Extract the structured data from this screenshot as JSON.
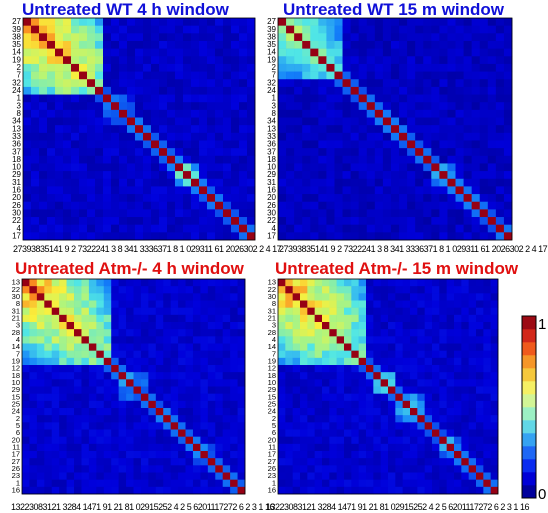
{
  "chart_data": [
    {
      "type": "heatmap",
      "title": "Untreated WT 4 h window",
      "title_color": "#1010d8",
      "labels": [
        "27",
        "39",
        "38",
        "35",
        "14",
        "19",
        "2",
        "7",
        "32",
        "24",
        "1",
        "3",
        "8",
        "34",
        "13",
        "33",
        "36",
        "37",
        "18",
        "10",
        "29",
        "31",
        "16",
        "20",
        "26",
        "30",
        "22",
        "4",
        "17"
      ],
      "x_tick_text": "27393835141 9 2 7322241  3  8 341 3336371 8 1 029311 61 2026302 2 4 17",
      "clusters": [
        {
          "from": 0,
          "to": 9,
          "peak": 0.9
        },
        {
          "from": 10,
          "to": 13,
          "peak": 0.4
        },
        {
          "from": 19,
          "to": 21,
          "peak": 0.65
        }
      ],
      "diagonal": 1.0,
      "background": 0.05
    },
    {
      "type": "heatmap",
      "title": "Untreated WT 15 m window",
      "title_color": "#1010d8",
      "labels": [
        "27",
        "39",
        "38",
        "35",
        "14",
        "19",
        "2",
        "7",
        "32",
        "24",
        "1",
        "3",
        "8",
        "34",
        "13",
        "33",
        "36",
        "37",
        "18",
        "10",
        "29",
        "31",
        "16",
        "20",
        "26",
        "30",
        "22",
        "4",
        "17"
      ],
      "x_tick_text": "27393835141 9 2 7322241  3  8 341 3336371 8 1 029311 61 2026302 2 4 17",
      "clusters": [
        {
          "from": 0,
          "to": 7,
          "peak": 0.7
        },
        {
          "from": 19,
          "to": 21,
          "peak": 0.5
        }
      ],
      "diagonal": 1.0,
      "background": 0.04
    },
    {
      "type": "heatmap",
      "title": "Untreated Atm-/- 4 h window",
      "title_color": "#e01010",
      "labels": [
        "13",
        "22",
        "30",
        "8",
        "31",
        "21",
        "3",
        "28",
        "4",
        "14",
        "7",
        "19",
        "12",
        "18",
        "10",
        "29",
        "15",
        "25",
        "24",
        "2",
        "5",
        "6",
        "20",
        "11",
        "17",
        "27",
        "26",
        "23",
        "1",
        "16"
      ],
      "x_tick_text": "13223083121 3284 1471 91 21 81 02915252 4 2  5  6201117272 6 2 3 1 16",
      "clusters": [
        {
          "from": 0,
          "to": 11,
          "peak": 0.85
        },
        {
          "from": 13,
          "to": 16,
          "peak": 0.4
        },
        {
          "from": 23,
          "to": 25,
          "peak": 0.45
        }
      ],
      "diagonal": 1.0,
      "background": 0.06
    },
    {
      "type": "heatmap",
      "title": "Untreated Atm-/- 15 m window",
      "title_color": "#e01010",
      "labels": [
        "13",
        "22",
        "30",
        "8",
        "31",
        "21",
        "3",
        "28",
        "4",
        "14",
        "7",
        "19",
        "12",
        "18",
        "10",
        "29",
        "15",
        "25",
        "24",
        "2",
        "5",
        "6",
        "20",
        "11",
        "17",
        "27",
        "26",
        "23",
        "1",
        "16"
      ],
      "x_tick_text": "13223083121 3284 1471 91 21 81 02915252 4 2  5  6201117272 6 2 3 1 16",
      "clusters": [
        {
          "from": 0,
          "to": 11,
          "peak": 0.85
        },
        {
          "from": 13,
          "to": 15,
          "peak": 0.65
        },
        {
          "from": 16,
          "to": 19,
          "peak": 0.5
        },
        {
          "from": 22,
          "to": 24,
          "peak": 0.55
        }
      ],
      "diagonal": 1.0,
      "background": 0.06
    }
  ],
  "colorbar": {
    "max_label": "1",
    "min_label": "0",
    "colors": [
      "#00009c",
      "#0000d6",
      "#0a2cf0",
      "#1f68f5",
      "#36a3f2",
      "#62d7e6",
      "#9cf0c4",
      "#d2f596",
      "#f5f064",
      "#f5c83c",
      "#f59628",
      "#f05a1c",
      "#d2281a",
      "#9c0a14"
    ]
  }
}
